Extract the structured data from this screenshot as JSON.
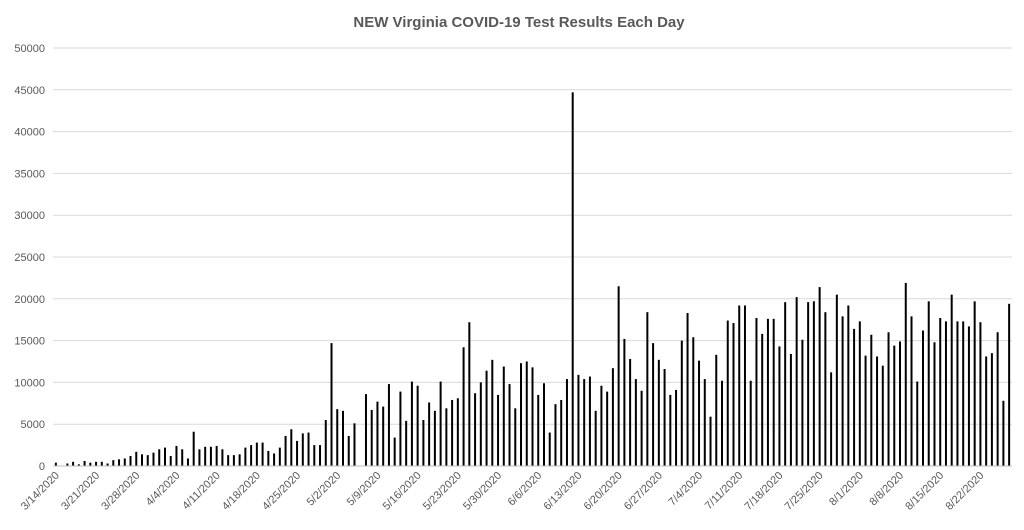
{
  "chart_data": {
    "type": "bar",
    "title": "NEW Virginia COVID-19 Test Results Each Day",
    "xlabel": "",
    "ylabel": "",
    "ylim": [
      0,
      50000
    ],
    "yticks": [
      0,
      5000,
      10000,
      15000,
      20000,
      25000,
      30000,
      35000,
      40000,
      45000,
      50000
    ],
    "xtick_labels": [
      "3/14/2020",
      "3/21/2020",
      "3/28/2020",
      "4/4/2020",
      "4/11/2020",
      "4/18/2020",
      "4/25/2020",
      "5/2/2020",
      "5/9/2020",
      "5/16/2020",
      "5/23/2020",
      "5/30/2020",
      "6/6/2020",
      "6/13/2020",
      "6/20/2020",
      "6/27/2020",
      "7/4/2020",
      "7/11/2020",
      "7/18/2020",
      "7/25/2020",
      "8/1/2020",
      "8/8/2020",
      "8/15/2020",
      "8/22/2020"
    ],
    "grid": true,
    "legend": "none",
    "bar_color": "#000000",
    "grid_color": "#d9d9d9",
    "start_date": "3/14/2020",
    "values": [
      400,
      0,
      300,
      500,
      200,
      600,
      400,
      500,
      500,
      300,
      700,
      800,
      900,
      1200,
      1700,
      1400,
      1300,
      1600,
      2000,
      2200,
      1200,
      2400,
      2000,
      900,
      4100,
      2000,
      2300,
      2300,
      2400,
      2000,
      1300,
      1300,
      1400,
      2200,
      2500,
      2800,
      2800,
      1800,
      1500,
      2200,
      3600,
      4400,
      3000,
      3900,
      4000,
      2500,
      2500,
      5500,
      14700,
      6800,
      6600,
      3600,
      5100,
      0,
      8600,
      6700,
      7700,
      7100,
      9800,
      3400,
      8900,
      5400,
      10100,
      9600,
      5500,
      7600,
      6600,
      10100,
      6900,
      7900,
      8100,
      14200,
      17200,
      8700,
      10000,
      11400,
      12700,
      8500,
      11900,
      9800,
      6900,
      12300,
      12500,
      11800,
      8500,
      9900,
      4000,
      7400,
      7900,
      10400,
      44700,
      10900,
      10400,
      10700,
      6600,
      9600,
      8900,
      11700,
      21500,
      15200,
      12800,
      10400,
      9000,
      18400,
      14700,
      12700,
      11600,
      8500,
      9100,
      15000,
      18300,
      15400,
      12600,
      10400,
      5900,
      13300,
      10200,
      17400,
      17100,
      19200,
      19200,
      10200,
      17700,
      15800,
      17600,
      17600,
      14300,
      19600,
      13400,
      20200,
      15100,
      19600,
      19700,
      21400,
      18400,
      11200,
      20500,
      17900,
      19200,
      16400,
      17300,
      13200,
      15700,
      13100,
      12000,
      16000,
      14400,
      14900,
      21900,
      17900,
      10100,
      16200,
      19700,
      14800,
      17700,
      17300,
      20500,
      17300,
      17300,
      16700,
      19700,
      17200,
      13100,
      13500,
      16000,
      7800,
      19400
    ]
  }
}
